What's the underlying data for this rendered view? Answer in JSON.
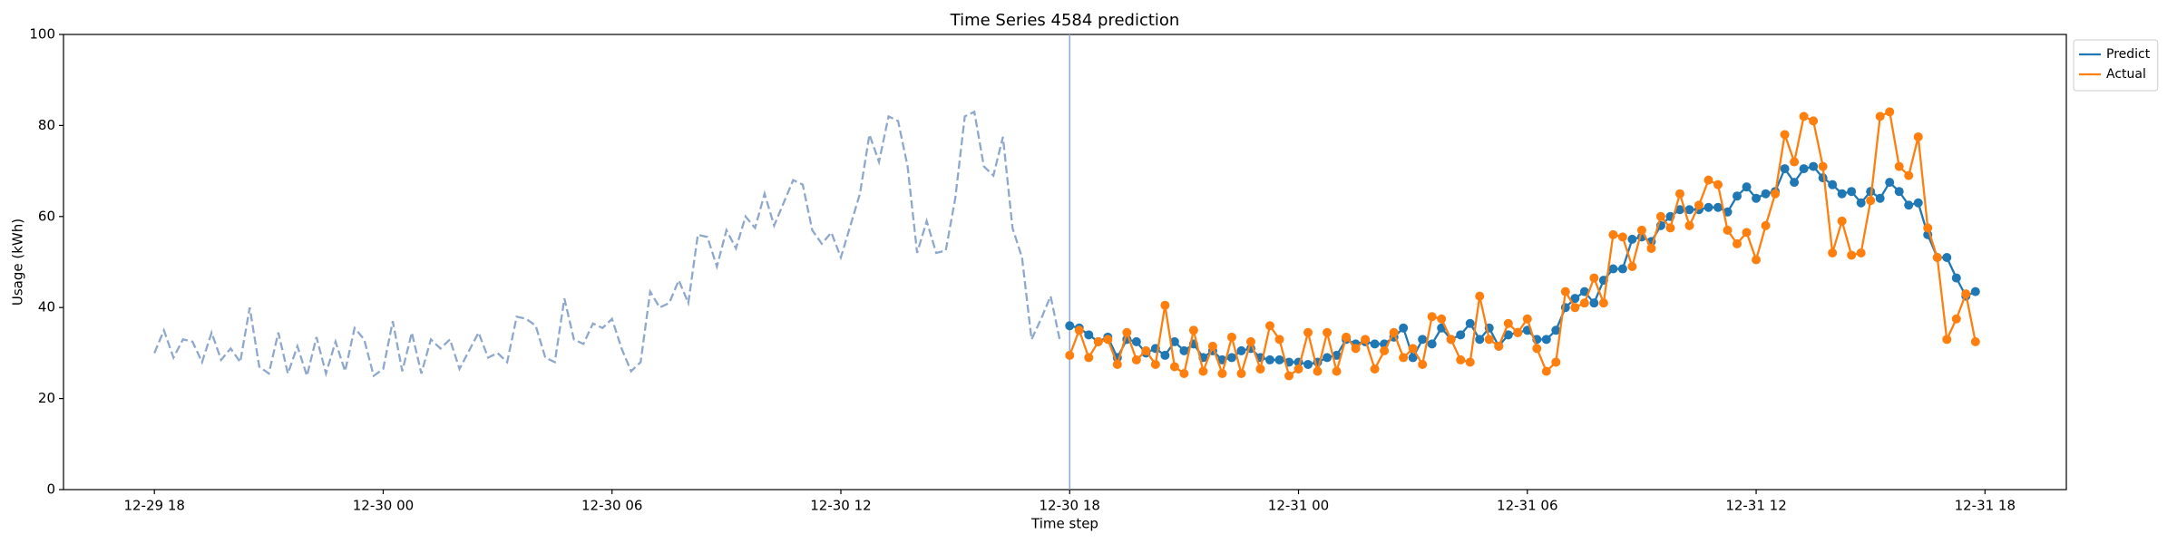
{
  "chart_data": {
    "type": "line",
    "title": "Time Series 4584 prediction",
    "x_label": "Time step",
    "y_label": "Usage (kWh)",
    "xlim": [
      "12-29 15:37",
      "12-31 20:08"
    ],
    "xticks": [
      {
        "value": "12-29 18:00",
        "label": "12-29 18"
      },
      {
        "value": "12-30 00:00",
        "label": "12-30 00"
      },
      {
        "value": "12-30 06:00",
        "label": "12-30 06"
      },
      {
        "value": "12-30 12:00",
        "label": "12-30 12"
      },
      {
        "value": "12-30 18:00",
        "label": "12-30 18"
      },
      {
        "value": "12-31 00:00",
        "label": "12-31 00"
      },
      {
        "value": "12-31 06:00",
        "label": "12-31 06"
      },
      {
        "value": "12-31 12:00",
        "label": "12-31 12"
      },
      {
        "value": "12-31 18:00",
        "label": "12-31 18"
      }
    ],
    "ylim": [
      0,
      100
    ],
    "yticks": [
      0,
      20,
      40,
      60,
      80,
      100
    ],
    "grid": false,
    "legend": "outside-upper-right",
    "vline": "12-30 18:00",
    "vline_color": "#8ea8d0",
    "history": {
      "color": "#8ea8cc",
      "dashed": true,
      "x": [
        "12-29 18:00",
        "12-29 18:15",
        "12-29 18:30",
        "12-29 18:45",
        "12-29 19:00",
        "12-29 19:15",
        "12-29 19:30",
        "12-29 19:45",
        "12-29 20:00",
        "12-29 20:15",
        "12-29 20:30",
        "12-29 20:45",
        "12-29 21:00",
        "12-29 21:15",
        "12-29 21:30",
        "12-29 21:45",
        "12-29 22:00",
        "12-29 22:15",
        "12-29 22:30",
        "12-29 22:45",
        "12-29 23:00",
        "12-29 23:15",
        "12-29 23:30",
        "12-29 23:45",
        "12-30 00:00",
        "12-30 00:15",
        "12-30 00:30",
        "12-30 00:45",
        "12-30 01:00",
        "12-30 01:15",
        "12-30 01:30",
        "12-30 01:45",
        "12-30 02:00",
        "12-30 02:15",
        "12-30 02:30",
        "12-30 02:45",
        "12-30 03:00",
        "12-30 03:15",
        "12-30 03:30",
        "12-30 03:45",
        "12-30 04:00",
        "12-30 04:15",
        "12-30 04:30",
        "12-30 04:45",
        "12-30 05:00",
        "12-30 05:15",
        "12-30 05:30",
        "12-30 05:45",
        "12-30 06:00",
        "12-30 06:15",
        "12-30 06:30",
        "12-30 06:45",
        "12-30 07:00",
        "12-30 07:15",
        "12-30 07:30",
        "12-30 07:45",
        "12-30 08:00",
        "12-30 08:15",
        "12-30 08:30",
        "12-30 08:45",
        "12-30 09:00",
        "12-30 09:15",
        "12-30 09:30",
        "12-30 09:45",
        "12-30 10:00",
        "12-30 10:15",
        "12-30 10:30",
        "12-30 10:45",
        "12-30 11:00",
        "12-30 11:15",
        "12-30 11:30",
        "12-30 11:45",
        "12-30 12:00",
        "12-30 12:15",
        "12-30 12:30",
        "12-30 12:45",
        "12-30 13:00",
        "12-30 13:15",
        "12-30 13:30",
        "12-30 13:45",
        "12-30 14:00",
        "12-30 14:15",
        "12-30 14:30",
        "12-30 14:45",
        "12-30 15:00",
        "12-30 15:15",
        "12-30 15:30",
        "12-30 15:45",
        "12-30 16:00",
        "12-30 16:15",
        "12-30 16:30",
        "12-30 16:45",
        "12-30 17:00",
        "12-30 17:15",
        "12-30 17:30",
        "12-30 17:45"
      ],
      "values": [
        30,
        35,
        29,
        33,
        32.5,
        28,
        34.5,
        28.5,
        31,
        28,
        40,
        27,
        25.5,
        34.5,
        25.5,
        31.5,
        25,
        33.5,
        25.5,
        32.5,
        26,
        35.5,
        33,
        25,
        26.5,
        37,
        26,
        34.5,
        25.5,
        33,
        31,
        33,
        26.5,
        30.5,
        34.5,
        29,
        30,
        28,
        38,
        37.5,
        36,
        29,
        28,
        42,
        33,
        32,
        36.5,
        35.5,
        37.5,
        31,
        26,
        28,
        43.5,
        40,
        41,
        46,
        41,
        56,
        55.5,
        49,
        57,
        53,
        60,
        57.5,
        65,
        58,
        63,
        68,
        67,
        57,
        54,
        56.5,
        51,
        58,
        65,
        78,
        72,
        82,
        81,
        71,
        52,
        59,
        52,
        52.5,
        64,
        82,
        83,
        71,
        69,
        77.5,
        57.5,
        51,
        33,
        37.5,
        42.5,
        32.5
      ]
    },
    "x": [
      "12-30 18:00",
      "12-30 18:15",
      "12-30 18:30",
      "12-30 18:45",
      "12-30 19:00",
      "12-30 19:15",
      "12-30 19:30",
      "12-30 19:45",
      "12-30 20:00",
      "12-30 20:15",
      "12-30 20:30",
      "12-30 20:45",
      "12-30 21:00",
      "12-30 21:15",
      "12-30 21:30",
      "12-30 21:45",
      "12-30 22:00",
      "12-30 22:15",
      "12-30 22:30",
      "12-30 22:45",
      "12-30 23:00",
      "12-30 23:15",
      "12-30 23:30",
      "12-30 23:45",
      "12-31 00:00",
      "12-31 00:15",
      "12-31 00:30",
      "12-31 00:45",
      "12-31 01:00",
      "12-31 01:15",
      "12-31 01:30",
      "12-31 01:45",
      "12-31 02:00",
      "12-31 02:15",
      "12-31 02:30",
      "12-31 02:45",
      "12-31 03:00",
      "12-31 03:15",
      "12-31 03:30",
      "12-31 03:45",
      "12-31 04:00",
      "12-31 04:15",
      "12-31 04:30",
      "12-31 04:45",
      "12-31 05:00",
      "12-31 05:15",
      "12-31 05:30",
      "12-31 05:45",
      "12-31 06:00",
      "12-31 06:15",
      "12-31 06:30",
      "12-31 06:45",
      "12-31 07:00",
      "12-31 07:15",
      "12-31 07:30",
      "12-31 07:45",
      "12-31 08:00",
      "12-31 08:15",
      "12-31 08:30",
      "12-31 08:45",
      "12-31 09:00",
      "12-31 09:15",
      "12-31 09:30",
      "12-31 09:45",
      "12-31 10:00",
      "12-31 10:15",
      "12-31 10:30",
      "12-31 10:45",
      "12-31 11:00",
      "12-31 11:15",
      "12-31 11:30",
      "12-31 11:45",
      "12-31 12:00",
      "12-31 12:15",
      "12-31 12:30",
      "12-31 12:45",
      "12-31 13:00",
      "12-31 13:15",
      "12-31 13:30",
      "12-31 13:45",
      "12-31 14:00",
      "12-31 14:15",
      "12-31 14:30",
      "12-31 14:45",
      "12-31 15:00",
      "12-31 15:15",
      "12-31 15:30",
      "12-31 15:45",
      "12-31 16:00",
      "12-31 16:15",
      "12-31 16:30",
      "12-31 16:45",
      "12-31 17:00",
      "12-31 17:15",
      "12-31 17:30",
      "12-31 17:45"
    ],
    "series": [
      {
        "name": "Predict",
        "color": "#1f77b4",
        "values": [
          36,
          35.5,
          34,
          32.5,
          33.5,
          29,
          33,
          32.5,
          30,
          31,
          29.5,
          32.5,
          30.5,
          32,
          29,
          30.5,
          28.5,
          29,
          30.5,
          31,
          29,
          28.5,
          28.5,
          28,
          28,
          27.5,
          28,
          29,
          29.5,
          33,
          32,
          32.5,
          32,
          32,
          33.5,
          35.5,
          29,
          33,
          32,
          35.5,
          33,
          34,
          36.5,
          33,
          35.5,
          31.5,
          34,
          34.5,
          35,
          33,
          33,
          35,
          40,
          42,
          43.5,
          41,
          46,
          48.5,
          48.5,
          55,
          55.5,
          54.5,
          58,
          60,
          61.5,
          61.5,
          61.5,
          62,
          62,
          61,
          64.5,
          66.5,
          64,
          65,
          65.5,
          70.5,
          67.5,
          70.5,
          71,
          68.5,
          67,
          65,
          65.5,
          63,
          65.5,
          64,
          67.5,
          65.5,
          62.5,
          63,
          56,
          51,
          51,
          46.5,
          42.5,
          43.5
        ]
      },
      {
        "name": "Actual",
        "color": "#ff7f0e",
        "values": [
          29.5,
          35,
          29,
          32.5,
          33,
          27.5,
          34.5,
          28.5,
          30.5,
          27.5,
          40.5,
          27,
          25.5,
          35,
          26,
          31.5,
          25.5,
          33.5,
          25.5,
          32.5,
          26.5,
          36,
          33,
          25,
          26.5,
          34.5,
          26,
          34.5,
          26,
          33.5,
          31,
          33,
          26.5,
          30.5,
          34.5,
          29,
          31,
          27.5,
          38,
          37.5,
          33,
          28.5,
          28,
          42.5,
          33,
          31.5,
          36.5,
          34.5,
          37.5,
          31,
          26,
          28,
          43.5,
          40,
          41,
          46.5,
          41,
          56,
          55.5,
          49,
          57,
          53,
          60,
          57.5,
          65,
          58,
          62.5,
          68,
          67,
          57,
          54,
          56.5,
          50.5,
          58,
          65,
          78,
          72,
          82,
          81,
          71,
          52,
          59,
          51.5,
          52,
          63.5,
          82,
          83,
          71,
          69,
          77.5,
          57.5,
          51,
          33,
          37.5,
          43,
          32.5
        ]
      }
    ]
  }
}
